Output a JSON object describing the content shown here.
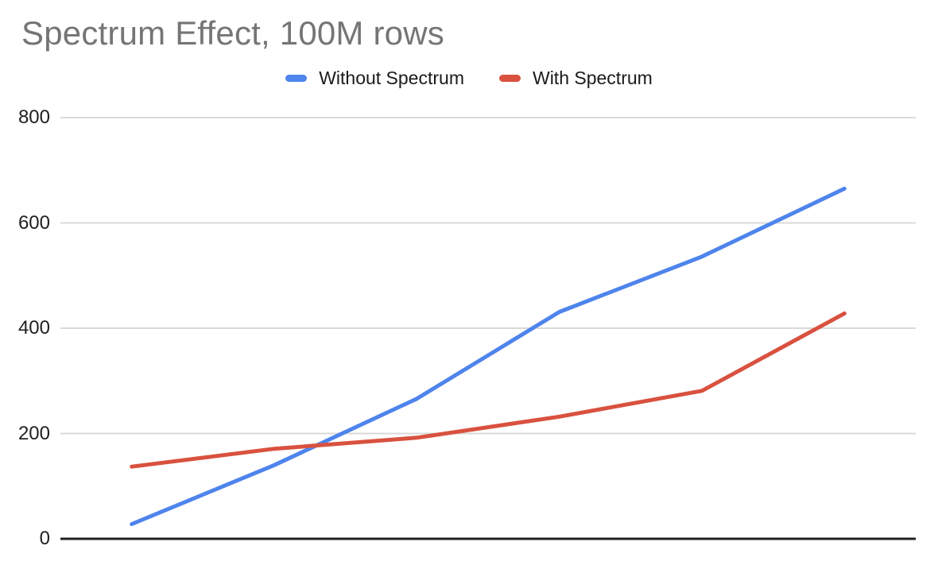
{
  "title": "Spectrum Effect, 100M rows",
  "legend": {
    "items": [
      {
        "label": "Without Spectrum",
        "color": "#4e84ec"
      },
      {
        "label": "With Spectrum",
        "color": "#d9513f"
      }
    ]
  },
  "y_axis": {
    "tick_labels": [
      "800",
      "600",
      "400",
      "200",
      "0"
    ]
  },
  "chart_data": {
    "type": "line",
    "title": "Spectrum Effect, 100M rows",
    "x": [
      1,
      2,
      3,
      4,
      5,
      6
    ],
    "x_tick_labels": [],
    "x_axis_labels_visible": false,
    "series": [
      {
        "name": "Without Spectrum",
        "color": "#4e84ec",
        "values": [
          28,
          140,
          266,
          431,
          536,
          665
        ]
      },
      {
        "name": "With Spectrum",
        "color": "#d9513f",
        "values": [
          137,
          171,
          192,
          232,
          281,
          428
        ]
      }
    ],
    "ylim": [
      0,
      800
    ],
    "y_ticks": [
      0,
      200,
      400,
      600,
      800
    ],
    "grid": true,
    "legend_position": "top-center",
    "xlabel": "",
    "ylabel": ""
  },
  "colors": {
    "background": "#ffffff",
    "title_text": "#757575",
    "axis_label_text": "#212121",
    "legend_text": "#1a1a1a",
    "gridline": "#d9d9d9",
    "baseline": "#212121"
  }
}
